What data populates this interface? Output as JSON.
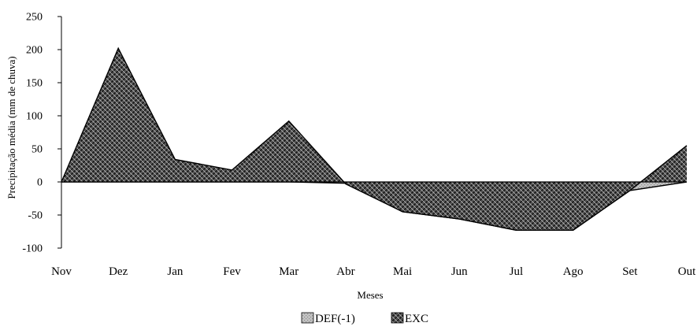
{
  "chart_data": {
    "type": "area",
    "title": "",
    "xlabel": "Meses",
    "ylabel": "Precipitação média (mm de chuva)",
    "categories": [
      "Nov",
      "Dez",
      "Jan",
      "Fev",
      "Mar",
      "Abr",
      "Mai",
      "Jun",
      "Jul",
      "Ago",
      "Set",
      "Out"
    ],
    "yticks": [
      "250",
      "200",
      "150",
      "100",
      "50",
      "0",
      "-50",
      "-100"
    ],
    "ylim": [
      -100,
      250
    ],
    "grid": false,
    "legend_position": "bottom-center",
    "series": [
      {
        "name": "DEF(-1)",
        "values": [
          0,
          0,
          0,
          0,
          0,
          -2,
          -45,
          -56,
          -73,
          -73,
          -13,
          0
        ],
        "pattern": "dotted",
        "color": "#b3b3b3"
      },
      {
        "name": "EXC",
        "values": [
          0,
          202,
          34,
          18,
          92,
          -3,
          -45,
          -56,
          -73,
          -73,
          -13,
          55
        ],
        "pattern": "diagonal-crosshatch",
        "color": "#3a3a3a"
      }
    ]
  }
}
